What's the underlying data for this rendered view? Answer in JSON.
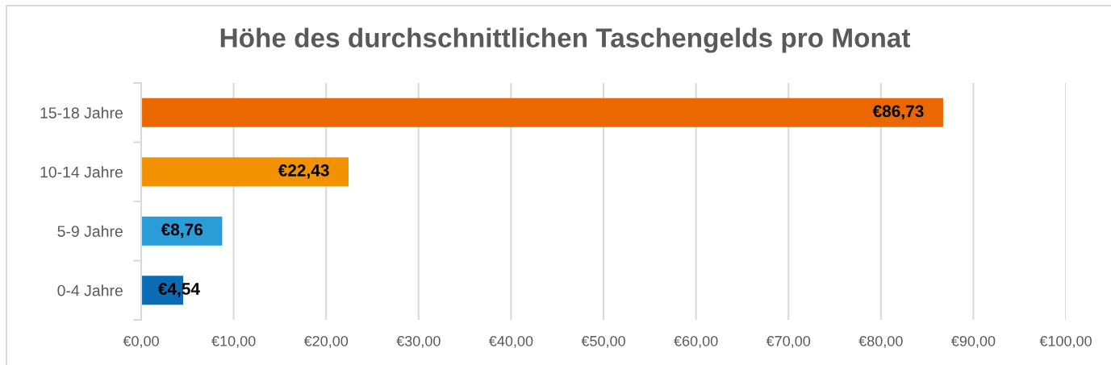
{
  "chart_data": {
    "type": "bar",
    "orientation": "horizontal",
    "title": "Höhe des durchschnittlichen Taschengelds pro Monat",
    "categories": [
      "15-18 Jahre",
      "10-14 Jahre",
      "5-9 Jahre",
      "0-4 Jahre"
    ],
    "values": [
      86.73,
      22.43,
      8.76,
      4.54
    ],
    "colors": [
      "#eb6702",
      "#f39200",
      "#2a9dd8",
      "#0b6cb5"
    ],
    "value_labels": [
      "€86,73",
      "€22,43",
      "€8,76",
      "€4,54"
    ],
    "xlim": [
      0,
      100
    ],
    "xticks": [
      {
        "value": 0,
        "label": "€0,00"
      },
      {
        "value": 10,
        "label": "€10,00"
      },
      {
        "value": 20,
        "label": "€20,00"
      },
      {
        "value": 30,
        "label": "€30,00"
      },
      {
        "value": 40,
        "label": "€40,00"
      },
      {
        "value": 50,
        "label": "€50,00"
      },
      {
        "value": 60,
        "label": "€60,00"
      },
      {
        "value": 70,
        "label": "€70,00"
      },
      {
        "value": 80,
        "label": "€80,00"
      },
      {
        "value": 90,
        "label": "€90,00"
      },
      {
        "value": 100,
        "label": "€100,00"
      }
    ],
    "grid": "x"
  }
}
